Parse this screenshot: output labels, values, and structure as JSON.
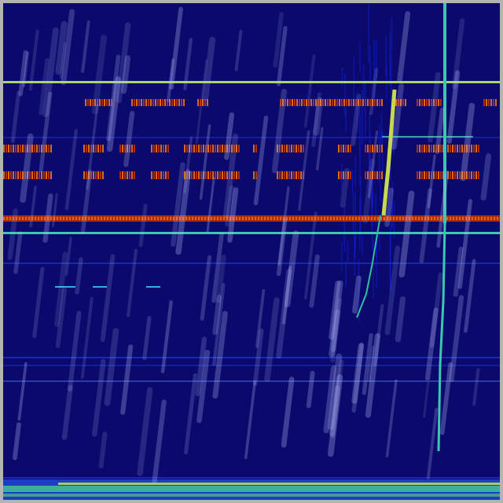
{
  "image": {
    "kind": "spectrogram-with-rain-overlay",
    "colors": {
      "background": "#0b0a6c",
      "frame": "#b4b4b4",
      "line_yellow_green": "#a8d46a",
      "line_cyan": "#3cc8b0",
      "band_red": "#b02a10",
      "band_orange": "#d86a10",
      "streak_yellow": "#c8d850",
      "blue_mid": "#1a30d8",
      "rain": "#b8c0ff"
    }
  }
}
